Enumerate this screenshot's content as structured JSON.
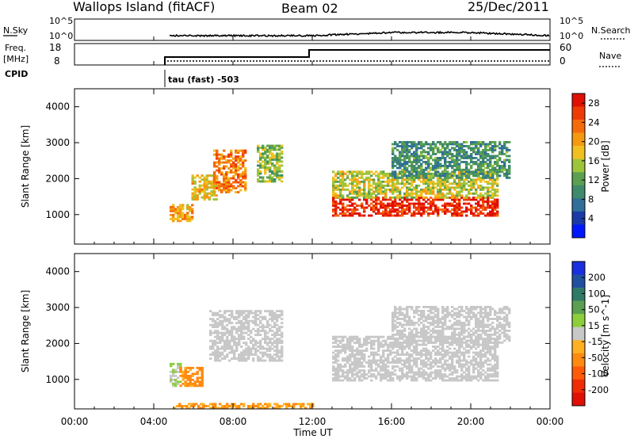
{
  "header": {
    "station": "Wallops Island (fitACF)",
    "beam": "Beam 02",
    "date": "25/Dec/2011"
  },
  "top_panels": {
    "nsky_label": "N.Sky",
    "nsearch_label": "N.Search",
    "noise_ticks_left": [
      "10^5",
      "10^0"
    ],
    "noise_ticks_right": [
      "10^5",
      "10^0"
    ],
    "freq_label": "Freq.",
    "freq_unit": "[MHz]",
    "freq_ticks": [
      "18",
      "8"
    ],
    "nave_label": "Nave",
    "nave_ticks": [
      "60",
      "0"
    ],
    "cpid_label": "CPID",
    "cpid_value": "tau (fast) -503"
  },
  "colors": {
    "power": [
      "#0018ff",
      "#1a3aa8",
      "#2f6f9a",
      "#3f8a6a",
      "#5aa050",
      "#9ec43a",
      "#f0c020",
      "#f59a10",
      "#f56a0a",
      "#f03a06",
      "#e01005"
    ],
    "velocity": [
      "#1a2fe0",
      "#2050a0",
      "#2f7a66",
      "#5aa050",
      "#8ccf3a",
      "#c8c8c8",
      "#ffb020",
      "#ff8a10",
      "#ff5a08",
      "#f02c04",
      "#e01005"
    ]
  },
  "chart_data": [
    {
      "type": "heatmap",
      "panel": "power",
      "ylabel": "Slant Range [km]",
      "xlabel": "Time UT",
      "ylim": [
        180,
        4500
      ],
      "xlim_hours": [
        0,
        24
      ],
      "x_ticks": [
        "00:00",
        "04:00",
        "08:00",
        "12:00",
        "16:00",
        "20:00",
        "00:00"
      ],
      "y_ticks": [
        1000,
        2000,
        3000,
        4000
      ],
      "colorbar": {
        "label": "Power [dB]",
        "ticks": [
          4,
          8,
          12,
          16,
          20,
          24,
          28
        ],
        "range": [
          0,
          30
        ]
      },
      "regions": [
        {
          "t": [
            4.8,
            5.9
          ],
          "r": [
            800,
            1250
          ],
          "value": 20
        },
        {
          "t": [
            5.9,
            7.2
          ],
          "r": [
            1400,
            2100
          ],
          "value": 18
        },
        {
          "t": [
            7.0,
            8.6
          ],
          "r": [
            1600,
            2800
          ],
          "value": 22
        },
        {
          "t": [
            9.2,
            10.5
          ],
          "r": [
            1900,
            2900
          ],
          "value": 14
        },
        {
          "t": [
            13.0,
            21.4
          ],
          "r": [
            950,
            1450
          ],
          "value": 27
        },
        {
          "t": [
            13.0,
            21.4
          ],
          "r": [
            1450,
            2200
          ],
          "value": 16
        },
        {
          "t": [
            16.0,
            22.0
          ],
          "r": [
            2000,
            3000
          ],
          "value": 10
        }
      ]
    },
    {
      "type": "heatmap",
      "panel": "velocity",
      "ylabel": "Slant Range [km]",
      "xlabel": "Time UT",
      "ylim": [
        180,
        4500
      ],
      "xlim_hours": [
        0,
        24
      ],
      "x_ticks": [
        "00:00",
        "04:00",
        "08:00",
        "12:00",
        "16:00",
        "20:00",
        "00:00"
      ],
      "y_ticks": [
        1000,
        2000,
        3000,
        4000
      ],
      "colorbar": {
        "label": "Velocity [m s^-1]",
        "ticks": [
          200,
          100,
          50,
          15,
          -15,
          -50,
          -100,
          -200
        ],
        "range": [
          -250,
          250
        ]
      },
      "regions": [
        {
          "t": [
            4.8,
            5.3
          ],
          "r": [
            800,
            1450
          ],
          "value": 20
        },
        {
          "t": [
            5.3,
            6.5
          ],
          "r": [
            800,
            1300
          ],
          "value": -80
        },
        {
          "t": [
            6.8,
            10.5
          ],
          "r": [
            1500,
            2900
          ],
          "value": 0
        },
        {
          "t": [
            13.0,
            21.4
          ],
          "r": [
            950,
            2200
          ],
          "value": 0
        },
        {
          "t": [
            16.0,
            22.0
          ],
          "r": [
            2000,
            3000
          ],
          "value": 0
        },
        {
          "t": [
            5.0,
            12.0
          ],
          "r": [
            180,
            320
          ],
          "value": -70
        }
      ]
    }
  ]
}
